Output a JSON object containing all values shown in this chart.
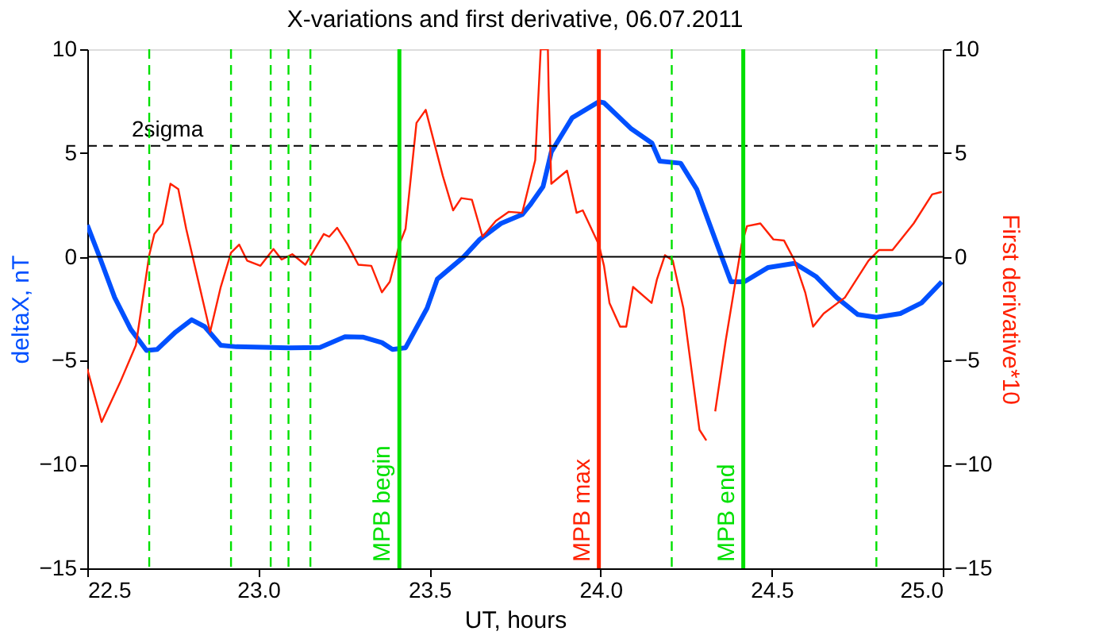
{
  "chart_data": {
    "type": "line",
    "title": "X-variations and first derivative, 06.07.2011",
    "xlabel": "UT, hours",
    "ylabel": "deltaX, nT",
    "y2label": "First derivative*10",
    "xlim": [
      22.5,
      25.0
    ],
    "xticks": [
      22.5,
      {
        "value": 23,
        "label": "23.0"
      },
      23.5,
      {
        "value": 24,
        "label": "24.0"
      },
      24.5,
      {
        "value": 25,
        "label": "25.0"
      }
    ],
    "ylim": [
      -15,
      10
    ],
    "yticks": [
      -15,
      -10,
      -5,
      0,
      5,
      10
    ],
    "y2lim": [
      -15,
      10
    ],
    "y2ticks": [
      -15,
      -10,
      -5,
      0,
      5,
      10
    ],
    "grid": false,
    "series": [
      {
        "color": "#0050ff",
        "x": [
          22.5,
          22.534,
          22.58,
          22.627,
          22.673,
          22.704,
          22.758,
          22.805,
          22.843,
          22.89,
          22.936,
          23.09,
          23.18,
          23.253,
          23.307,
          23.361,
          23.392,
          23.43,
          23.493,
          23.523,
          23.6,
          23.647,
          23.709,
          23.771,
          23.794,
          23.832,
          23.856,
          23.917,
          23.995,
          24.01,
          24.088,
          24.15,
          24.173,
          24.234,
          24.281,
          24.335,
          24.381,
          24.42,
          24.49,
          24.567,
          24.629,
          24.69,
          24.752,
          24.806,
          24.876,
          24.938,
          24.997
        ],
        "values": [
          1.53,
          0.08,
          -1.96,
          -3.49,
          -4.51,
          -4.46,
          -3.62,
          -3.03,
          -3.36,
          -4.26,
          -4.33,
          -4.38,
          -4.36,
          -3.85,
          -3.87,
          -4.13,
          -4.46,
          -4.38,
          -2.47,
          -1.07,
          0,
          0.84,
          1.61,
          2.04,
          2.5,
          3.39,
          5.05,
          6.7,
          7.47,
          7.42,
          6.19,
          5.48,
          4.61,
          4.51,
          3.26,
          0.84,
          -1.2,
          -1.2,
          -0.51,
          -0.31,
          -0.94,
          -1.96,
          -2.78,
          -2.91,
          -2.73,
          -2.22,
          -1.2
        ]
      },
      {
        "color": "#ff2000",
        "axis": "y2",
        "x": [
          22.5,
          22.542,
          22.596,
          22.642,
          22.681,
          22.696,
          22.72,
          22.743,
          22.766,
          22.789,
          22.859,
          22.89,
          22.92,
          22.944,
          22.967,
          23.006,
          23.044,
          23.068,
          23.099,
          23.137,
          23.191,
          23.207,
          23.23,
          23.261,
          23.292,
          23.33,
          23.361,
          23.384,
          23.412,
          23.43,
          23.462,
          23.489,
          23.539,
          23.569,
          23.593,
          23.624,
          23.655,
          23.694,
          23.732,
          23.771,
          23.809,
          23.825,
          23.846,
          23.848,
          23.856,
          23.902,
          23.93,
          23.948,
          23.995,
          24.01,
          24.026,
          24.057,
          24.075,
          24.095,
          24.149,
          24.165,
          24.188,
          24.211,
          24.242,
          24.289,
          24.309,
          24.32,
          24.335,
          24.366,
          24.412,
          24.428,
          24.467,
          24.505,
          24.536,
          24.567,
          24.598,
          24.621,
          24.652,
          24.714,
          24.783,
          24.814,
          24.853,
          24.915,
          24.969,
          24.997
        ],
        "values": [
          -5.4,
          -7.95,
          -6.04,
          -4.26,
          0.08,
          1.1,
          1.6,
          3.52,
          3.26,
          1.35,
          -3.62,
          -1.45,
          0.2,
          0.59,
          -0.18,
          -0.43,
          0.38,
          -0.13,
          0.13,
          -0.38,
          1.1,
          0.97,
          1.4,
          0.59,
          -0.38,
          -0.43,
          -1.71,
          -1.2,
          0.59,
          1.35,
          6.45,
          7.08,
          3.9,
          2.24,
          2.83,
          2.75,
          0.97,
          1.73,
          2.17,
          2.12,
          4.66,
          10,
          10,
          8.23,
          3.52,
          4.15,
          2.12,
          2.24,
          0.59,
          -0.43,
          -2.22,
          -3.36,
          -3.36,
          -1.45,
          -2.22,
          -1.07,
          0.08,
          -0.18,
          -2.47,
          -8.33,
          -8.84,
          null,
          -7.44,
          -4.0,
          0.59,
          1.48,
          1.61,
          0.84,
          0.79,
          -0.18,
          -1.71,
          -3.36,
          -2.73,
          -1.96,
          -0.18,
          0.33,
          0.33,
          1.61,
          3.01,
          3.13
        ]
      }
    ],
    "ref_lines": [
      {
        "axis": "y",
        "value": 0,
        "color": "#000000",
        "line_style": "solid"
      },
      {
        "axis": "y",
        "value": 5.35,
        "color": "#000000",
        "line_style": "dashed",
        "label": "2sigma"
      },
      {
        "axis": "x",
        "value": 22.681,
        "color": "#00e000",
        "line_style": "dashed"
      },
      {
        "axis": "x",
        "value": 22.92,
        "color": "#00e000",
        "line_style": "dashed"
      },
      {
        "axis": "x",
        "value": 23.036,
        "color": "#00e000",
        "line_style": "dashed"
      },
      {
        "axis": "x",
        "value": 23.088,
        "color": "#00e000",
        "line_style": "dashed"
      },
      {
        "axis": "x",
        "value": 23.152,
        "color": "#00e000",
        "line_style": "dashed"
      },
      {
        "axis": "x",
        "value": 24.208,
        "color": "#00e000",
        "line_style": "dashed"
      },
      {
        "axis": "x",
        "value": 24.806,
        "color": "#00e000",
        "line_style": "dashed"
      },
      {
        "axis": "x",
        "value": 23.412,
        "color": "#00e000",
        "line_style": "solid",
        "label": "MPB begin"
      },
      {
        "axis": "x",
        "value": 23.995,
        "color": "#ff2000",
        "line_style": "solid",
        "label": "MPB max"
      },
      {
        "axis": "x",
        "value": 24.417,
        "color": "#00e000",
        "line_style": "solid",
        "label": "MPB end"
      }
    ]
  }
}
